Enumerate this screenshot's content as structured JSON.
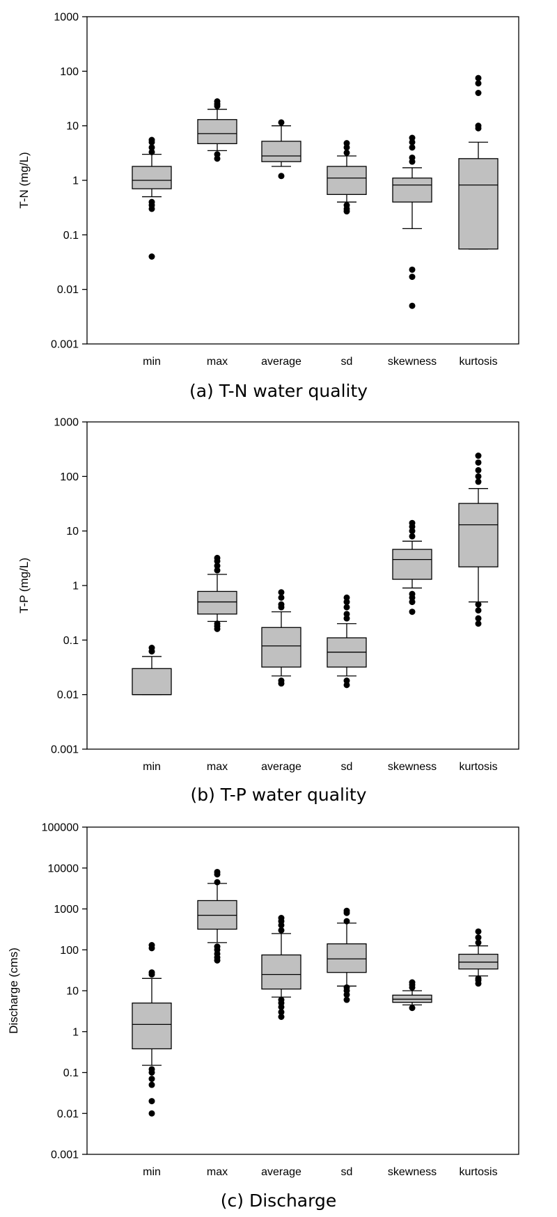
{
  "chart_data": [
    {
      "type": "box",
      "caption": "(a) T-N water quality",
      "ylabel": "T-N (mg/L)",
      "yscale": "log",
      "ylim": [
        0.001,
        1000
      ],
      "yticks": [
        "0.001",
        "0.01",
        "0.1",
        "1",
        "10",
        "100",
        "1000"
      ],
      "categories": [
        "min",
        "max",
        "average",
        "sd",
        "skewness",
        "kurtosis"
      ],
      "grid": false,
      "boxes": [
        {
          "whisker_low": 0.5,
          "q1": 0.7,
          "median": 1.0,
          "q3": 1.8,
          "whisker_high": 3.0,
          "outliers": [
            0.04,
            0.3,
            0.35,
            0.4,
            3.3,
            4.0,
            5.0,
            5.5
          ]
        },
        {
          "whisker_low": 3.5,
          "q1": 4.7,
          "median": 7.2,
          "q3": 13,
          "whisker_high": 20,
          "outliers": [
            2.5,
            3.0,
            23,
            25,
            28
          ]
        },
        {
          "whisker_low": 1.8,
          "q1": 2.2,
          "median": 2.8,
          "q3": 5.2,
          "whisker_high": 10,
          "outliers": [
            1.2,
            11.5
          ]
        },
        {
          "whisker_low": 0.4,
          "q1": 0.55,
          "median": 1.1,
          "q3": 1.8,
          "whisker_high": 2.8,
          "outliers": [
            0.27,
            0.3,
            0.35,
            3.2,
            4.0,
            4.8
          ]
        },
        {
          "whisker_low": 0.13,
          "q1": 0.4,
          "median": 0.82,
          "q3": 1.1,
          "whisker_high": 1.7,
          "outliers": [
            0.005,
            0.017,
            0.023,
            2.2,
            2.6,
            4.0,
            5.0,
            6.0
          ]
        },
        {
          "whisker_low": 0.055,
          "q1": 0.055,
          "median": 0.82,
          "q3": 2.5,
          "whisker_high": 5.0,
          "outliers": [
            9,
            10,
            40,
            60,
            75
          ]
        }
      ]
    },
    {
      "type": "box",
      "caption": "(b) T-P water quality",
      "ylabel": "T-P (mg/L)",
      "yscale": "log",
      "ylim": [
        0.001,
        1000
      ],
      "yticks": [
        "0.001",
        "0.01",
        "0.1",
        "1",
        "10",
        "100",
        "1000"
      ],
      "categories": [
        "min",
        "max",
        "average",
        "sd",
        "skewness",
        "kurtosis"
      ],
      "grid": false,
      "boxes": [
        {
          "whisker_low": 0.01,
          "q1": 0.01,
          "median": 0.01,
          "q3": 0.03,
          "whisker_high": 0.05,
          "outliers": [
            0.062,
            0.072
          ]
        },
        {
          "whisker_low": 0.22,
          "q1": 0.3,
          "median": 0.5,
          "q3": 0.78,
          "whisker_high": 1.6,
          "outliers": [
            0.16,
            0.18,
            0.2,
            1.9,
            2.3,
            2.8,
            3.2
          ]
        },
        {
          "whisker_low": 0.022,
          "q1": 0.032,
          "median": 0.078,
          "q3": 0.17,
          "whisker_high": 0.33,
          "outliers": [
            0.016,
            0.018,
            0.4,
            0.45,
            0.6,
            0.75
          ]
        },
        {
          "whisker_low": 0.022,
          "q1": 0.032,
          "median": 0.06,
          "q3": 0.11,
          "whisker_high": 0.2,
          "outliers": [
            0.015,
            0.018,
            0.25,
            0.3,
            0.4,
            0.5,
            0.6
          ]
        },
        {
          "whisker_low": 0.9,
          "q1": 1.3,
          "median": 3.0,
          "q3": 4.6,
          "whisker_high": 6.5,
          "outliers": [
            0.33,
            0.5,
            0.6,
            0.7,
            8,
            10,
            12,
            14
          ]
        },
        {
          "whisker_low": 0.5,
          "q1": 2.2,
          "median": 13,
          "q3": 32,
          "whisker_high": 60,
          "outliers": [
            0.2,
            0.25,
            0.35,
            0.45,
            80,
            100,
            130,
            180,
            240
          ]
        }
      ]
    },
    {
      "type": "box",
      "caption": "(c) Discharge",
      "ylabel": "Discharge (cms)",
      "yscale": "log",
      "ylim": [
        0.001,
        100000
      ],
      "yticks": [
        "0.001",
        "0.01",
        "0.1",
        "1",
        "10",
        "100",
        "1000",
        "10000",
        "100000"
      ],
      "categories": [
        "min",
        "max",
        "average",
        "sd",
        "skewness",
        "kurtosis"
      ],
      "grid": false,
      "boxes": [
        {
          "whisker_low": 0.15,
          "q1": 0.38,
          "median": 1.5,
          "q3": 5.0,
          "whisker_high": 20,
          "outliers": [
            0.01,
            0.02,
            0.05,
            0.07,
            0.1,
            0.12,
            25,
            28,
            110,
            130
          ]
        },
        {
          "whisker_low": 150,
          "q1": 320,
          "median": 700,
          "q3": 1600,
          "whisker_high": 4200,
          "outliers": [
            55,
            65,
            80,
            100,
            120,
            4500,
            7000,
            8000
          ]
        },
        {
          "whisker_low": 7,
          "q1": 11,
          "median": 25,
          "q3": 75,
          "whisker_high": 250,
          "outliers": [
            2.3,
            3,
            4,
            5,
            6,
            300,
            400,
            500,
            600
          ]
        },
        {
          "whisker_low": 13,
          "q1": 28,
          "median": 60,
          "q3": 140,
          "whisker_high": 450,
          "outliers": [
            6,
            8,
            10,
            12,
            500,
            800,
            900
          ]
        },
        {
          "whisker_low": 4.5,
          "q1": 5.2,
          "median": 6.2,
          "q3": 7.8,
          "whisker_high": 10,
          "outliers": [
            3.8,
            12,
            14,
            16
          ]
        },
        {
          "whisker_low": 23,
          "q1": 34,
          "median": 50,
          "q3": 78,
          "whisker_high": 125,
          "outliers": [
            15,
            18,
            20,
            150,
            200,
            280
          ]
        }
      ]
    }
  ]
}
